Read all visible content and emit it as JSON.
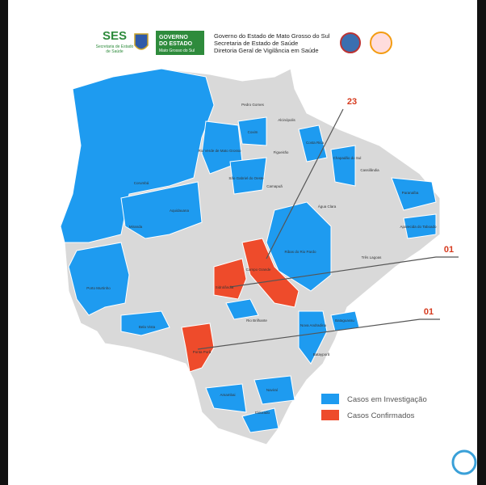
{
  "header": {
    "ses": "SES",
    "ses_sub_1": "Secretaria de Estado",
    "ses_sub_2": "de Saúde",
    "badge_1": "GOVERNO",
    "badge_2": "DO ESTADO",
    "badge_3": "Mato Grosso do Sul",
    "line_1": "Governo do Estado de Mato Grosso do Sul",
    "line_2": "Secretaria de Estado de Saúde",
    "line_3": "Diretoria Geral de Vigilância em Saúde"
  },
  "annotations": [
    "23",
    "01",
    "01"
  ],
  "legend": [
    "Casos em Investigação",
    "Casos Confirmados"
  ],
  "municipalities": [
    "Corumbá",
    "Rio Verde de Mato Grosso",
    "Coxim",
    "Costa Rica",
    "Chapadão do Sul",
    "Paranaíba",
    "Aparecida do Taboado",
    "Pedro Gomes",
    "Alcinópolis",
    "Figueirão",
    "São Gabriel do Oeste",
    "Camapuã",
    "Aquidauana",
    "Miranda",
    "Campo Grande",
    "Sidrolândia",
    "Ribas do Rio Pardo",
    "Porto Murtinho",
    "Bela Vista",
    "Ponta Porã",
    "Nova Andradina",
    "Rio Brilhante",
    "Amambai",
    "Naviraí",
    "Eldorado",
    "Bataguassu",
    "Batayporã",
    "Três Lagoas",
    "Cassilândia",
    "Água Clara"
  ]
}
